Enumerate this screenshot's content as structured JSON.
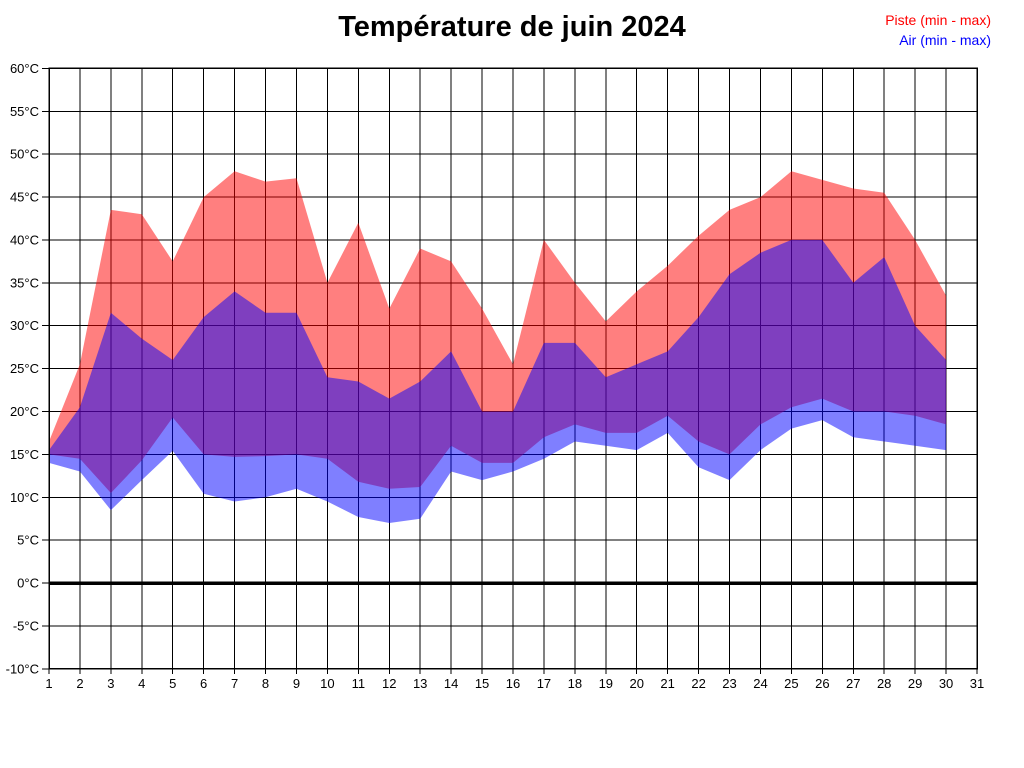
{
  "page": {
    "title": "Température de juin 2024"
  },
  "legend": {
    "piste_label": "Piste (min - max)",
    "air_label": "Air (min - max)",
    "piste_color": "#FF0000",
    "air_color": "#0000FF"
  },
  "chart_data": {
    "type": "area",
    "title": "Température de juin 2024",
    "xlabel": "",
    "ylabel": "",
    "x": [
      1,
      2,
      3,
      4,
      5,
      6,
      7,
      8,
      9,
      10,
      11,
      12,
      13,
      14,
      15,
      16,
      17,
      18,
      19,
      20,
      21,
      22,
      23,
      24,
      25,
      26,
      27,
      28,
      29,
      30
    ],
    "xlim": [
      1,
      31
    ],
    "ylim": [
      -10,
      60
    ],
    "y_tick_step": 5,
    "grid": true,
    "legend_position": "top-right",
    "x_tick_labels": [
      "1",
      "2",
      "3",
      "4",
      "5",
      "6",
      "7",
      "8",
      "9",
      "10",
      "11",
      "12",
      "13",
      "14",
      "15",
      "16",
      "17",
      "18",
      "19",
      "20",
      "21",
      "22",
      "23",
      "24",
      "25",
      "26",
      "27",
      "28",
      "29",
      "30",
      "31"
    ],
    "y_tick_labels": [
      "60°C",
      "55°C",
      "50°C",
      "45°C",
      "40°C",
      "35°C",
      "30°C",
      "25°C",
      "20°C",
      "15°C",
      "10°C",
      "5°C",
      "0°C",
      "-5°C",
      "-10°C"
    ],
    "y_tick_values": [
      60,
      55,
      50,
      45,
      40,
      35,
      30,
      25,
      20,
      15,
      10,
      5,
      0,
      -5,
      -10
    ],
    "zero_line_value": 0,
    "series": [
      {
        "name": "Piste (min - max)",
        "fill": "rgba(255,0,0,0.5)",
        "legend_color": "#FF0000",
        "max": [
          16.5,
          25.5,
          43.5,
          43,
          37.5,
          45,
          48,
          46.8,
          47.2,
          35,
          42,
          32,
          39,
          37.5,
          32,
          25.5,
          40,
          35,
          30.5,
          34,
          37,
          40.5,
          43.5,
          45,
          48,
          47,
          46,
          45.5,
          40,
          33.5
        ],
        "min": [
          15,
          14.5,
          10.5,
          14.3,
          19.3,
          15,
          14.7,
          14.8,
          15,
          14.5,
          11.8,
          11,
          11.2,
          16,
          14,
          14,
          17,
          18.5,
          17.5,
          17.5,
          19.5,
          16.5,
          15,
          18.5,
          20.5,
          21.5,
          20,
          20,
          19.5,
          18.5
        ]
      },
      {
        "name": "Air (min - max)",
        "fill": "rgba(0,0,255,0.5)",
        "legend_color": "#0000FF",
        "max": [
          15.5,
          20.5,
          31.5,
          28.5,
          26,
          31,
          34,
          31.5,
          31.5,
          24,
          23.5,
          21.5,
          23.5,
          27,
          20,
          20,
          28,
          28,
          24,
          25.5,
          27,
          31,
          36,
          38.5,
          40,
          40,
          35,
          38,
          30,
          26
        ],
        "min": [
          14,
          13,
          8.5,
          12,
          15.4,
          10.4,
          9.5,
          10,
          11,
          9.5,
          7.7,
          7,
          7.5,
          13,
          12,
          13,
          14.5,
          16.5,
          16,
          15.5,
          17.5,
          13.5,
          12,
          15.5,
          18,
          19,
          17,
          16.5,
          16,
          15.5
        ]
      }
    ],
    "overlap_color_rendered": "#8040C0",
    "piste_band_color_rendered": "#FF8080",
    "air_band_color_rendered": "#8080FF"
  }
}
